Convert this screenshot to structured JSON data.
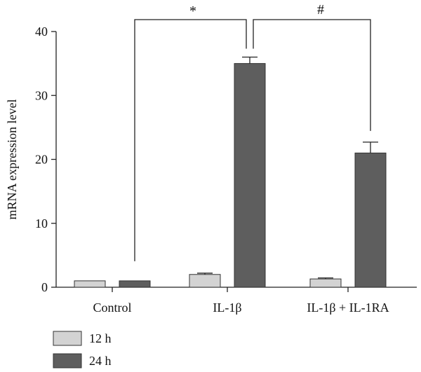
{
  "chart_data": {
    "type": "bar",
    "categories": [
      "Control",
      "IL-1β",
      "IL-1β + IL-1RA"
    ],
    "series": [
      {
        "name": "12 h",
        "color": "#d3d3d3",
        "values": [
          1.0,
          2.0,
          1.3
        ],
        "errors": [
          0.0,
          0.2,
          0.15
        ]
      },
      {
        "name": "24 h",
        "color": "#5e5e5e",
        "values": [
          1.0,
          35.0,
          21.0
        ],
        "errors": [
          0.0,
          1.0,
          1.7
        ]
      }
    ],
    "xlabel": "",
    "ylabel": "mRNA expression level",
    "ylim": [
      0,
      40
    ],
    "yticks": [
      0,
      10,
      20,
      30,
      40
    ],
    "legend_position": "bottom-left",
    "grid": false,
    "significance": [
      {
        "label": "*",
        "from": "Control 24 h",
        "to": "IL-1β 24 h"
      },
      {
        "label": "#",
        "from": "IL-1β 24 h",
        "to": "IL-1β + IL-1RA 24 h"
      }
    ]
  }
}
